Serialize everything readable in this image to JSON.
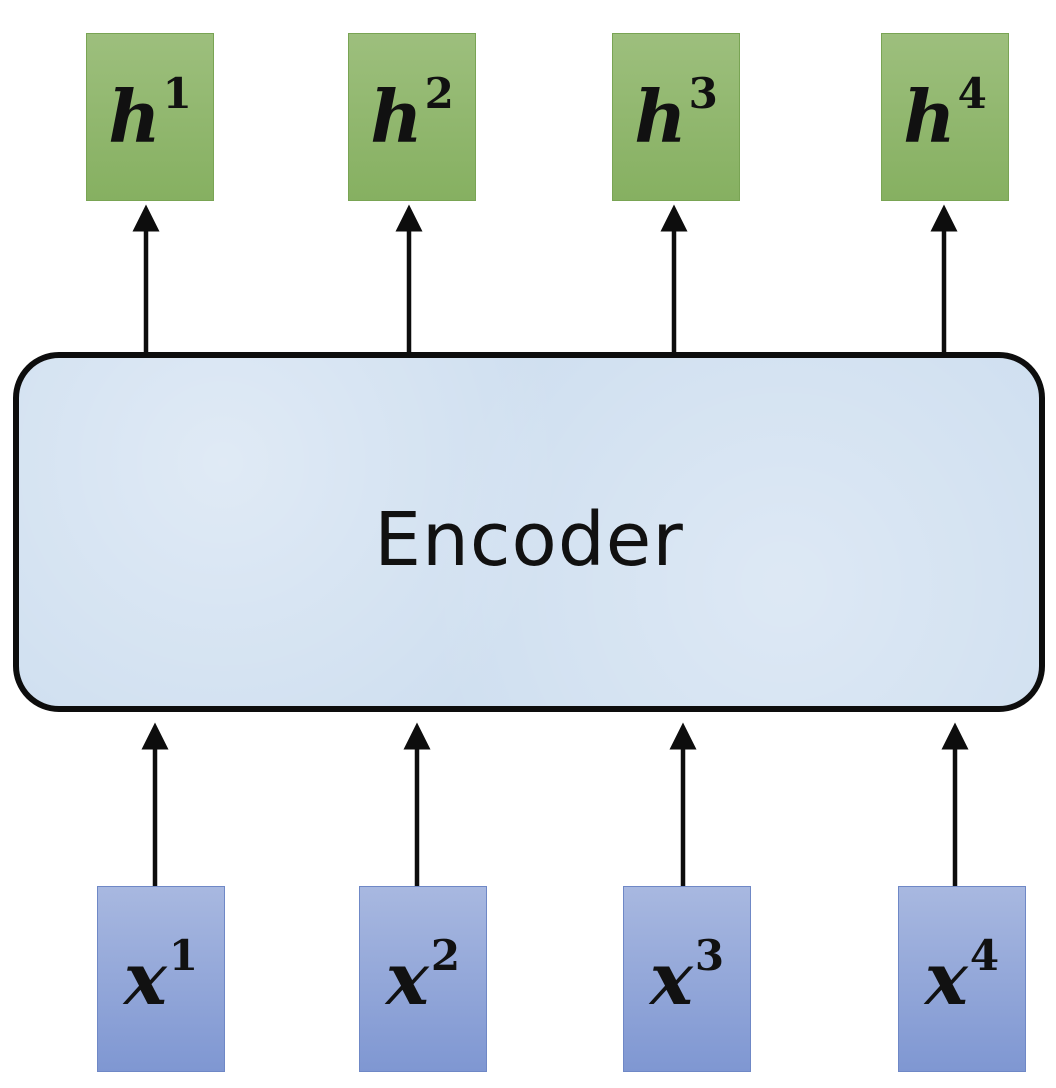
{
  "encoder": {
    "label": "Encoder"
  },
  "outputs": [
    {
      "base": "h",
      "sup": "1"
    },
    {
      "base": "h",
      "sup": "2"
    },
    {
      "base": "h",
      "sup": "3"
    },
    {
      "base": "h",
      "sup": "4"
    }
  ],
  "inputs": [
    {
      "base": "x",
      "sup": "1"
    },
    {
      "base": "x",
      "sup": "2"
    },
    {
      "base": "x",
      "sup": "3"
    },
    {
      "base": "x",
      "sup": "4"
    }
  ],
  "colors": {
    "output_fill": "#8fb66c",
    "input_fill": "#8fa4d8",
    "encoder_fill": "#cfdff0",
    "stroke": "#0d0d0d"
  }
}
